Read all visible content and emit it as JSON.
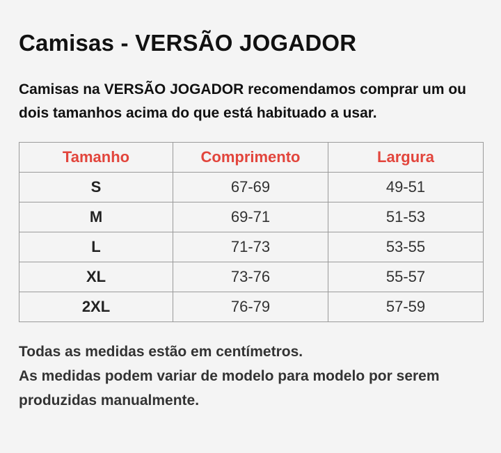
{
  "page": {
    "title": "Camisas - VERSÃO JOGADOR",
    "intro": "Camisas na VERSÃO JOGADOR recomendamos comprar um ou dois tamanhos acima do que está habituado a usar."
  },
  "table": {
    "headers": [
      "Tamanho",
      "Comprimento",
      "Largura"
    ],
    "rows": [
      [
        "S",
        "67-69",
        "49-51"
      ],
      [
        "M",
        "69-71",
        "51-53"
      ],
      [
        "L",
        "71-73",
        "53-55"
      ],
      [
        "XL",
        "73-76",
        "55-57"
      ],
      [
        "2XL",
        "76-79",
        "57-59"
      ]
    ]
  },
  "notes": [
    "Todas as medidas estão em centímetros.",
    "As medidas podem variar de modelo para modelo por serem produzidas manualmente."
  ],
  "colors": {
    "background": "#f4f4f4",
    "header_text": "#e2453c",
    "border": "#9a9a9a"
  }
}
